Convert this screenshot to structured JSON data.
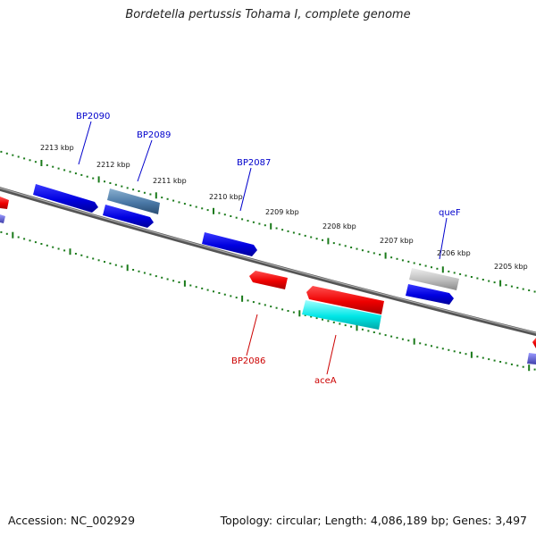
{
  "title": "Bordetella pertussis Tohama I, complete genome",
  "footer": {
    "accession": "Accession: NC_002929",
    "summary": "Topology: circular; Length: 4,086,189 bp; Genes: 3,497"
  },
  "ticks": [
    "2213 kbp",
    "2212 kbp",
    "2211 kbp",
    "2210 kbp",
    "2209 kbp",
    "2208 kbp",
    "2207 kbp",
    "2206 kbp",
    "2205 kbp"
  ],
  "genes": {
    "BP2090": "BP2090",
    "BP2089": "BP2089",
    "BP2087": "BP2087",
    "queF": "queF",
    "BP2086": "BP2086",
    "aceA": "aceA"
  },
  "colors": {
    "forward_label": "#0000cc",
    "reverse_label": "#cc0000",
    "scale_dots": "#1a7a1a",
    "backbone": "#777777"
  }
}
